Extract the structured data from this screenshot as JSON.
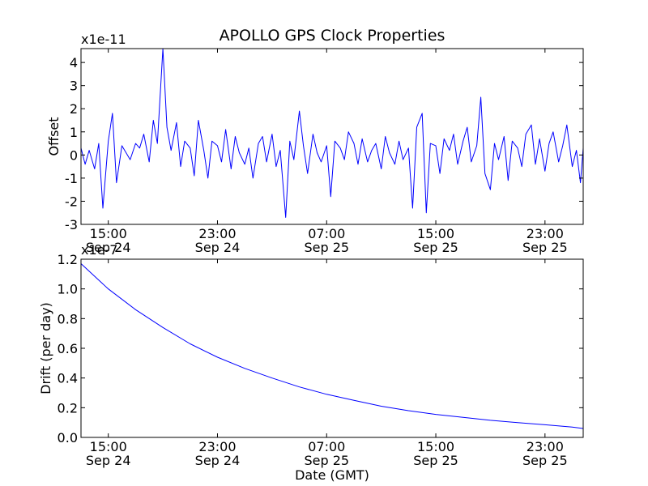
{
  "chart_data": [
    {
      "type": "line",
      "title": "APOLLO GPS Clock Properties",
      "ylabel": "Offset",
      "xlabel": "",
      "multiplier": "x1e-11",
      "xlim": [
        13.0,
        49.8
      ],
      "ylim": [
        -3,
        4.6
      ],
      "yticks": [
        -3,
        -2,
        -1,
        0,
        1,
        2,
        3,
        4
      ],
      "ytick_labels": [
        "-3",
        "-2",
        "-1",
        "0",
        "1",
        "2",
        "3",
        "4"
      ],
      "xticks": [
        15,
        23,
        31,
        39,
        47
      ],
      "xtick_labels": [
        {
          "time": "15:00",
          "date": "Sep 24"
        },
        {
          "time": "23:00",
          "date": "Sep 24"
        },
        {
          "time": "07:00",
          "date": "Sep 25"
        },
        {
          "time": "15:00",
          "date": "Sep 25"
        },
        {
          "time": "23:00",
          "date": "Sep 25"
        }
      ],
      "series": [
        {
          "name": "offset",
          "color": "#0000ff",
          "x": [
            13.0,
            13.3,
            13.6,
            14.0,
            14.3,
            14.6,
            15.0,
            15.3,
            15.6,
            16.0,
            16.3,
            16.6,
            17.0,
            17.3,
            17.6,
            18.0,
            18.3,
            18.6,
            19.0,
            19.3,
            19.6,
            20.0,
            20.3,
            20.6,
            21.0,
            21.3,
            21.6,
            22.0,
            22.3,
            22.6,
            23.0,
            23.3,
            23.6,
            24.0,
            24.3,
            24.6,
            25.0,
            25.3,
            25.6,
            26.0,
            26.3,
            26.6,
            27.0,
            27.3,
            27.6,
            28.0,
            28.3,
            28.6,
            29.0,
            29.3,
            29.6,
            30.0,
            30.3,
            30.6,
            31.0,
            31.3,
            31.6,
            32.0,
            32.3,
            32.6,
            33.0,
            33.3,
            33.6,
            34.0,
            34.3,
            34.6,
            35.0,
            35.3,
            35.6,
            36.0,
            36.3,
            36.6,
            37.0,
            37.3,
            37.6,
            38.0,
            38.3,
            38.6,
            39.0,
            39.3,
            39.6,
            40.0,
            40.3,
            40.6,
            41.0,
            41.3,
            41.6,
            42.0,
            42.3,
            42.6,
            43.0,
            43.3,
            43.6,
            44.0,
            44.3,
            44.6,
            45.0,
            45.3,
            45.6,
            46.0,
            46.3,
            46.6,
            47.0,
            47.3,
            47.6,
            48.0,
            48.3,
            48.6,
            49.0,
            49.3,
            49.6,
            49.8
          ],
          "values": [
            0.3,
            -0.4,
            0.2,
            -0.6,
            0.5,
            -2.3,
            0.6,
            1.8,
            -1.2,
            0.4,
            0.1,
            -0.2,
            0.5,
            0.3,
            0.9,
            -0.3,
            1.5,
            0.5,
            4.6,
            1.2,
            0.2,
            1.4,
            -0.5,
            0.6,
            0.3,
            -0.9,
            1.5,
            0.2,
            -1.0,
            0.6,
            0.4,
            -0.3,
            1.1,
            -0.6,
            0.8,
            0.1,
            -0.4,
            0.3,
            -1.0,
            0.5,
            0.8,
            -0.3,
            0.9,
            -0.5,
            0.2,
            -2.7,
            0.6,
            -0.2,
            1.9,
            0.4,
            -0.8,
            0.9,
            0.1,
            -0.3,
            0.4,
            -1.8,
            0.6,
            0.3,
            -0.2,
            1.0,
            0.5,
            -0.4,
            0.7,
            -0.3,
            0.2,
            0.5,
            -0.6,
            0.8,
            0.1,
            -0.4,
            0.6,
            -0.2,
            0.3,
            -2.3,
            1.2,
            1.8,
            -2.5,
            0.5,
            0.4,
            -0.8,
            0.7,
            0.2,
            0.9,
            -0.4,
            0.6,
            1.2,
            -0.3,
            0.4,
            2.5,
            -0.8,
            -1.5,
            0.5,
            -0.2,
            0.8,
            -1.1,
            0.6,
            0.3,
            -0.5,
            0.9,
            1.3,
            -0.4,
            0.7,
            -0.7,
            0.5,
            1.0,
            -0.3,
            0.4,
            1.3,
            -0.5,
            0.2,
            -1.2,
            0.3
          ]
        }
      ]
    },
    {
      "type": "line",
      "title": "",
      "ylabel": "Drift (per day)",
      "xlabel": "Date (GMT)",
      "multiplier": "x1e-7",
      "xlim": [
        13.0,
        49.8
      ],
      "ylim": [
        0.0,
        1.2
      ],
      "yticks": [
        0.0,
        0.2,
        0.4,
        0.6,
        0.8,
        1.0,
        1.2
      ],
      "ytick_labels": [
        "0.0",
        "0.2",
        "0.4",
        "0.6",
        "0.8",
        "1.0",
        "1.2"
      ],
      "xticks": [
        15,
        23,
        31,
        39,
        47
      ],
      "xtick_labels": [
        {
          "time": "15:00",
          "date": "Sep 24"
        },
        {
          "time": "23:00",
          "date": "Sep 24"
        },
        {
          "time": "07:00",
          "date": "Sep 25"
        },
        {
          "time": "15:00",
          "date": "Sep 25"
        },
        {
          "time": "23:00",
          "date": "Sep 25"
        }
      ],
      "series": [
        {
          "name": "drift",
          "color": "#0000ff",
          "x": [
            13.0,
            15.0,
            17.0,
            19.0,
            21.0,
            23.0,
            25.0,
            27.0,
            29.0,
            31.0,
            33.0,
            35.0,
            37.0,
            39.0,
            41.0,
            43.0,
            45.0,
            47.0,
            49.0,
            49.8
          ],
          "values": [
            1.17,
            1.0,
            0.86,
            0.74,
            0.63,
            0.54,
            0.465,
            0.4,
            0.34,
            0.29,
            0.25,
            0.21,
            0.18,
            0.155,
            0.135,
            0.115,
            0.1,
            0.085,
            0.07,
            0.06
          ]
        }
      ]
    }
  ]
}
